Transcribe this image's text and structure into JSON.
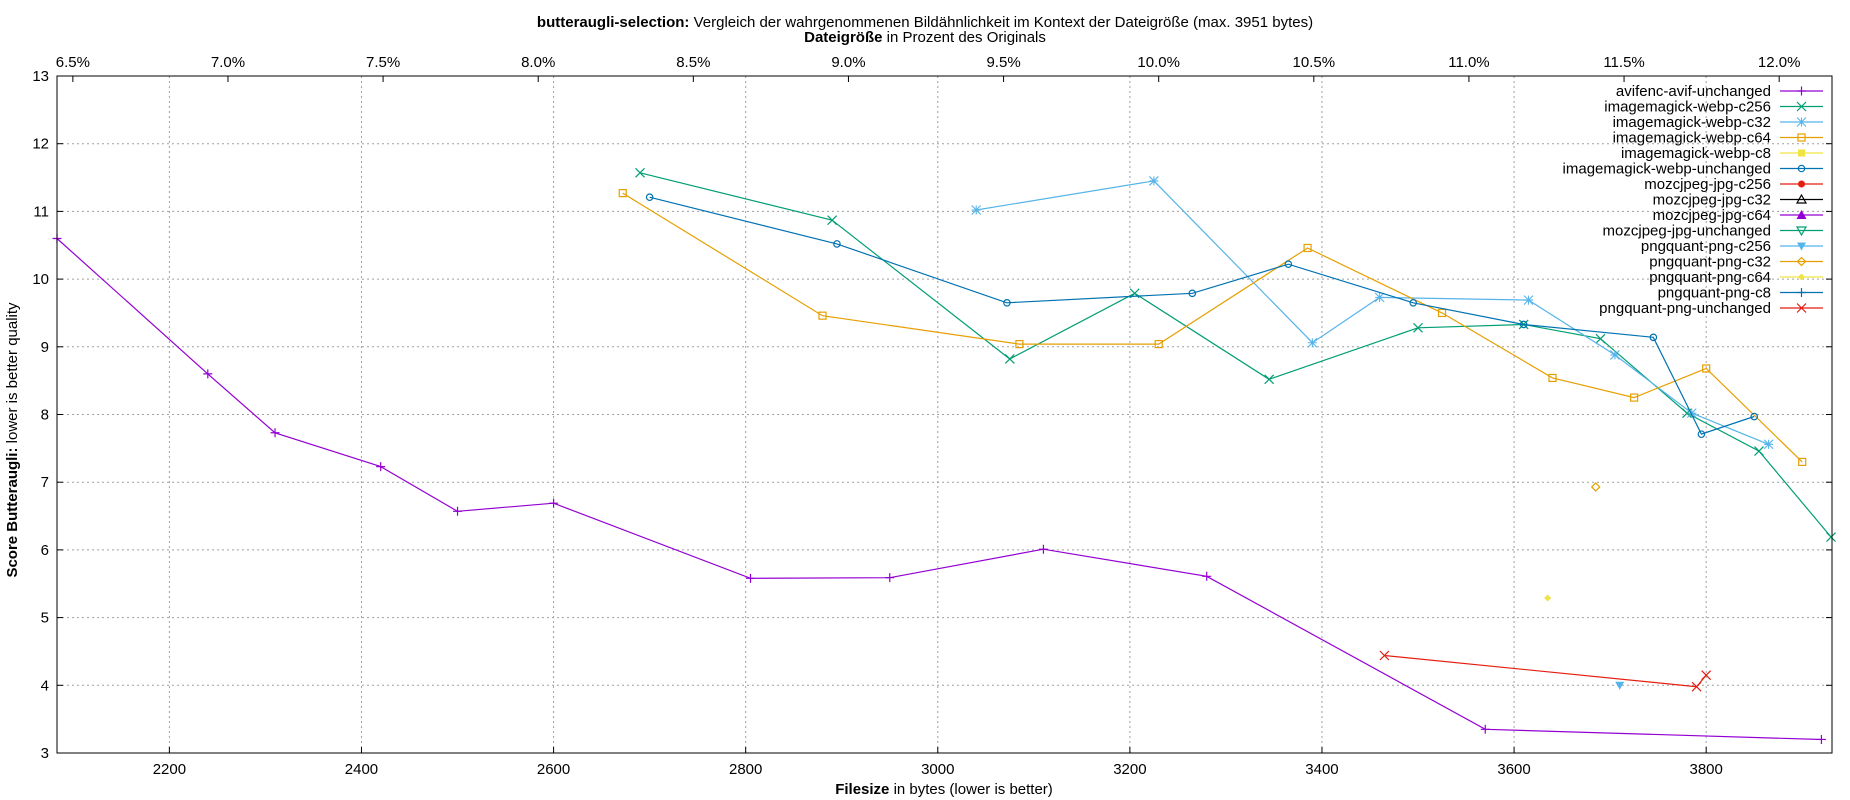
{
  "chart_data": {
    "type": "line",
    "title": {
      "bold": "butteraugli-selection:",
      "rest": " Vergleich der wahrgenommenen Bildähnlichkeit im Kontext der Dateigröße (max. 3951 bytes)"
    },
    "subtitle": {
      "bold": "Dateigröße",
      "rest": " in Prozent des Originals"
    },
    "xlabel": {
      "bold": "Filesize",
      "rest": " in bytes (lower is better)"
    },
    "ylabel": {
      "bold": "Score Butteraugli:",
      "rest": " lower is better quality"
    },
    "xlim": [
      2083,
      3931
    ],
    "ylim": [
      3,
      13
    ],
    "x_ticks": [
      "2200",
      "2400",
      "2600",
      "2800",
      "3000",
      "3200",
      "3400",
      "3600",
      "3800"
    ],
    "y_ticks": [
      "3",
      "4",
      "5",
      "6",
      "7",
      "8",
      "9",
      "10",
      "11",
      "12",
      "13"
    ],
    "x2_ticks": [
      "6.5%",
      "7.0%",
      "7.5%",
      "8.0%",
      "8.5%",
      "9.0%",
      "9.5%",
      "10.0%",
      "10.5%",
      "11.0%",
      "11.5%",
      "12.0%"
    ],
    "x2_tick_values": [
      6.5,
      7.0,
      7.5,
      8.0,
      8.5,
      9.0,
      9.5,
      10.0,
      10.5,
      11.0,
      11.5,
      12.0
    ],
    "x2_reference_bytes": 32300,
    "grid": true,
    "legend_position": "top-right",
    "series": [
      {
        "name": "avifenc-avif-unchanged",
        "color": "#9400d3",
        "marker": "plus",
        "points": [
          [
            2083,
            10.6
          ],
          [
            2240,
            8.6
          ],
          [
            2310,
            7.73
          ],
          [
            2420,
            7.23
          ],
          [
            2500,
            6.57
          ],
          [
            2600,
            6.69
          ],
          [
            2805,
            5.58
          ],
          [
            2950,
            5.59
          ],
          [
            3110,
            6.01
          ],
          [
            3280,
            5.61
          ],
          [
            3570,
            3.35
          ],
          [
            3920,
            3.2
          ]
        ]
      },
      {
        "name": "imagemagick-webp-c256",
        "color": "#009e73",
        "marker": "x",
        "points": [
          [
            2690,
            11.57
          ],
          [
            2890,
            10.87
          ],
          [
            3075,
            8.82
          ],
          [
            3205,
            9.79
          ],
          [
            3345,
            8.52
          ],
          [
            3500,
            9.28
          ],
          [
            3610,
            9.33
          ],
          [
            3690,
            9.12
          ],
          [
            3780,
            8.02
          ],
          [
            3855,
            7.46
          ],
          [
            3930,
            6.19
          ]
        ]
      },
      {
        "name": "imagemagick-webp-c32",
        "color": "#56b4e9",
        "marker": "star",
        "points": [
          [
            3040,
            11.02
          ],
          [
            3225,
            11.45
          ],
          [
            3390,
            9.06
          ],
          [
            3460,
            9.73
          ],
          [
            3615,
            9.69
          ],
          [
            3705,
            8.88
          ],
          [
            3785,
            8.02
          ],
          [
            3865,
            7.56
          ]
        ]
      },
      {
        "name": "imagemagick-webp-c64",
        "color": "#e69f00",
        "marker": "square",
        "points": [
          [
            2672,
            11.27
          ],
          [
            2880,
            9.46
          ],
          [
            3085,
            9.04
          ],
          [
            3230,
            9.04
          ],
          [
            3385,
            10.46
          ],
          [
            3525,
            9.5
          ],
          [
            3640,
            8.54
          ],
          [
            3725,
            8.25
          ],
          [
            3800,
            8.68
          ],
          [
            3900,
            7.3
          ]
        ]
      },
      {
        "name": "imagemagick-webp-c8",
        "color": "#f0e442",
        "marker": "square-filled",
        "points": []
      },
      {
        "name": "imagemagick-webp-unchanged",
        "color": "#0072b2",
        "marker": "circle",
        "points": [
          [
            2700,
            11.21
          ],
          [
            2895,
            10.52
          ],
          [
            3072,
            9.65
          ],
          [
            3265,
            9.79
          ],
          [
            3365,
            10.22
          ],
          [
            3495,
            9.65
          ],
          [
            3610,
            9.33
          ],
          [
            3745,
            9.14
          ],
          [
            3795,
            7.71
          ],
          [
            3850,
            7.97
          ]
        ]
      },
      {
        "name": "mozcjpeg-jpg-c256",
        "color": "#e51e10",
        "marker": "circle-filled",
        "points": []
      },
      {
        "name": "mozcjpeg-jpg-c32",
        "color": "#000000",
        "marker": "triangle",
        "points": []
      },
      {
        "name": "mozcjpeg-jpg-c64",
        "color": "#9400d3",
        "marker": "triangle-filled",
        "points": []
      },
      {
        "name": "mozcjpeg-jpg-unchanged",
        "color": "#009e73",
        "marker": "triangle-down",
        "points": []
      },
      {
        "name": "pngquant-png-c256",
        "color": "#56b4e9",
        "marker": "triangle-down-filled",
        "points": [
          [
            3710,
            4.0
          ]
        ]
      },
      {
        "name": "pngquant-png-c32",
        "color": "#e69f00",
        "marker": "diamond",
        "points": [
          [
            3685,
            6.93
          ]
        ]
      },
      {
        "name": "pngquant-png-c64",
        "color": "#f0e442",
        "marker": "diamond-filled",
        "points": [
          [
            3635,
            5.29
          ]
        ]
      },
      {
        "name": "pngquant-png-c8",
        "color": "#0072b2",
        "marker": "plus",
        "points": []
      },
      {
        "name": "pngquant-png-unchanged",
        "color": "#e51e10",
        "marker": "x",
        "points": [
          [
            3465,
            4.44
          ],
          [
            3790,
            3.98
          ],
          [
            3800,
            4.15
          ]
        ]
      }
    ]
  }
}
